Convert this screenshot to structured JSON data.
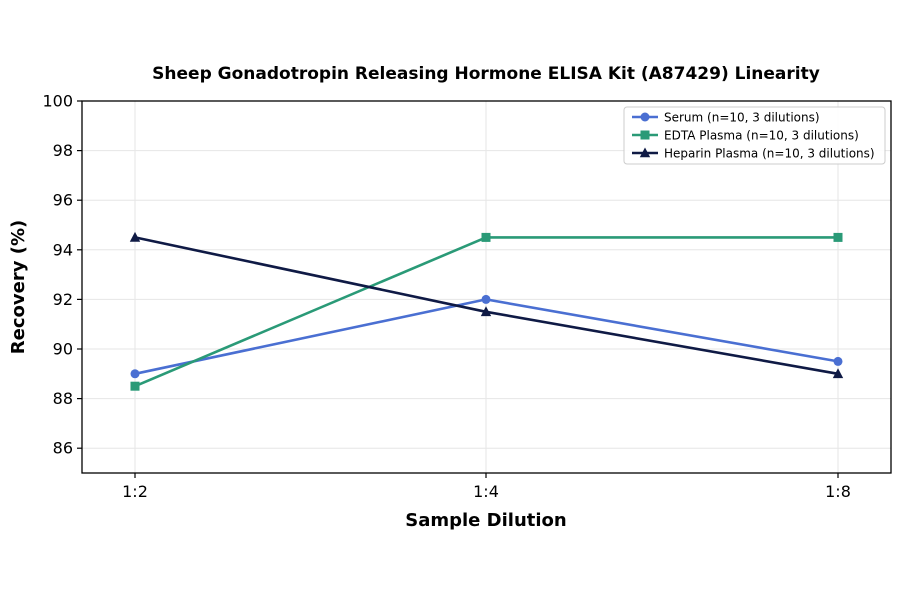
{
  "chart_data": {
    "type": "line",
    "title": "Sheep Gonadotropin Releasing Hormone ELISA Kit (A87429) Linearity",
    "xlabel": "Sample Dilution",
    "ylabel": "Recovery (%)",
    "categories": [
      "1:2",
      "1:4",
      "1:8"
    ],
    "ylim": [
      85,
      100
    ],
    "yticks": [
      "86",
      "88",
      "90",
      "92",
      "94",
      "96",
      "98",
      "100"
    ],
    "grid": true,
    "legend_position": "top-right",
    "series": [
      {
        "name": "Serum (n=10, 3 dilutions)",
        "values": [
          89.0,
          92.0,
          89.5
        ],
        "color": "#4a6fd2",
        "marker": "circle"
      },
      {
        "name": "EDTA Plasma (n=10, 3 dilutions)",
        "values": [
          88.5,
          94.5,
          94.5
        ],
        "color": "#2a9a77",
        "marker": "square"
      },
      {
        "name": "Heparin Plasma (n=10, 3 dilutions)",
        "values": [
          94.5,
          91.5,
          89.0
        ],
        "color": "#0f1a45",
        "marker": "triangle"
      }
    ]
  }
}
